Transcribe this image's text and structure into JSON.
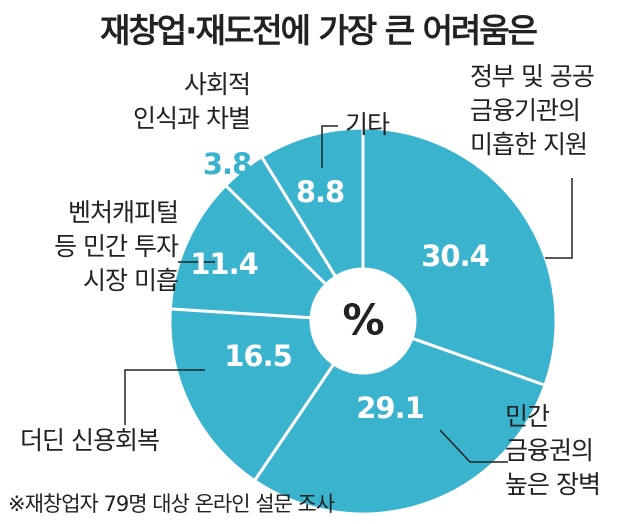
{
  "chart_data": {
    "type": "donut",
    "title": "재창업·재도전에 가장 큰 어려움은",
    "unit": "%",
    "categories": [
      "정부 및 공공\n금융기관의\n미흡한 지원",
      "민간\n금융권의\n높은 장벽",
      "더딘 신용회복",
      "벤처캐피털\n등 민간 투자\n시장 미흡",
      "사회적\n인식과 차별",
      "기타"
    ],
    "values": [
      30.4,
      29.1,
      16.5,
      11.4,
      3.8,
      8.8
    ],
    "color": "#3ab3cf",
    "note": "※재창업자 79명 대상 온라인 설문 조사"
  }
}
